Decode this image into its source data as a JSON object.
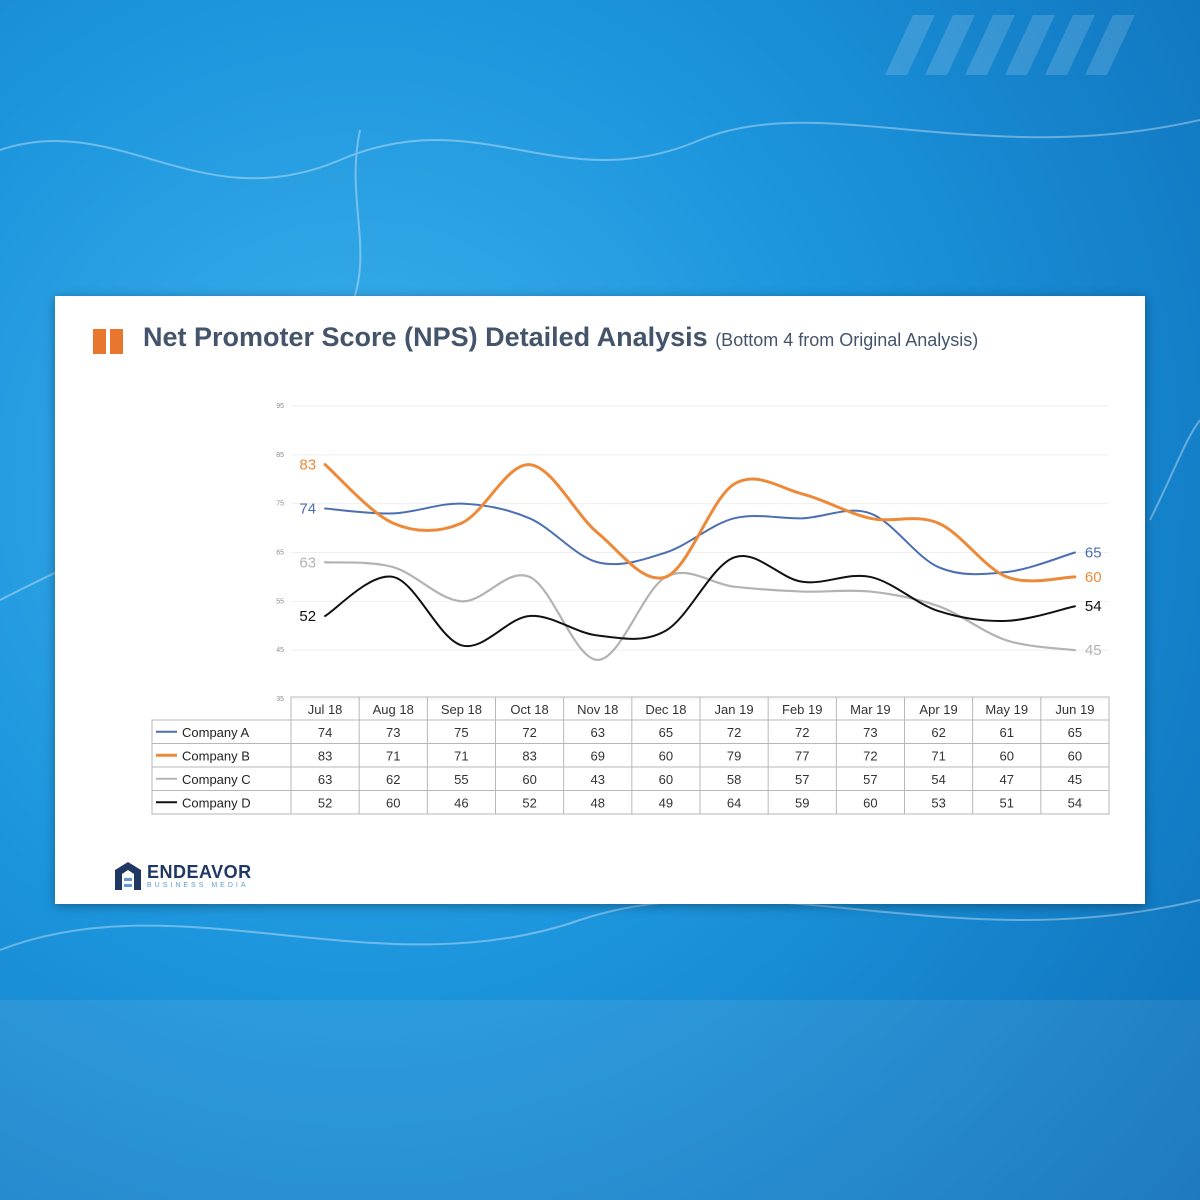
{
  "page": {
    "title": "Net Promoter Score (NPS) Detailed Analysis",
    "subtitle": "(Bottom 4 from Original Analysis)",
    "logo_name": "ENDEAVOR",
    "logo_tagline": "BUSINESS MEDIA"
  },
  "chart_data": {
    "type": "line",
    "title": "Net Promoter Score (NPS) Detailed Analysis",
    "subtitle": "(Bottom 4 from Original Analysis)",
    "categories": [
      "Jul 18",
      "Aug 18",
      "Sep 18",
      "Oct 18",
      "Nov 18",
      "Dec 18",
      "Jan 19",
      "Feb 19",
      "Mar 19",
      "Apr 19",
      "May 19",
      "Jun 19"
    ],
    "yticks": [
      35,
      45,
      55,
      65,
      75,
      85,
      95
    ],
    "ylim": [
      35,
      95
    ],
    "grid": true,
    "legend": "data-table-left",
    "series": [
      {
        "name": "Company A",
        "color": "#4a6fb3",
        "values": [
          74,
          73,
          75,
          72,
          63,
          65,
          72,
          72,
          73,
          62,
          61,
          65
        ]
      },
      {
        "name": "Company B",
        "color": "#ed8a3a",
        "values": [
          83,
          71,
          71,
          83,
          69,
          60,
          79,
          77,
          72,
          71,
          60,
          60
        ]
      },
      {
        "name": "Company C",
        "color": "#b3b3b3",
        "values": [
          63,
          62,
          55,
          60,
          43,
          60,
          58,
          57,
          57,
          54,
          47,
          45
        ]
      },
      {
        "name": "Company D",
        "color": "#111111",
        "values": [
          52,
          60,
          46,
          52,
          48,
          49,
          64,
          59,
          60,
          53,
          51,
          54
        ]
      }
    ]
  }
}
